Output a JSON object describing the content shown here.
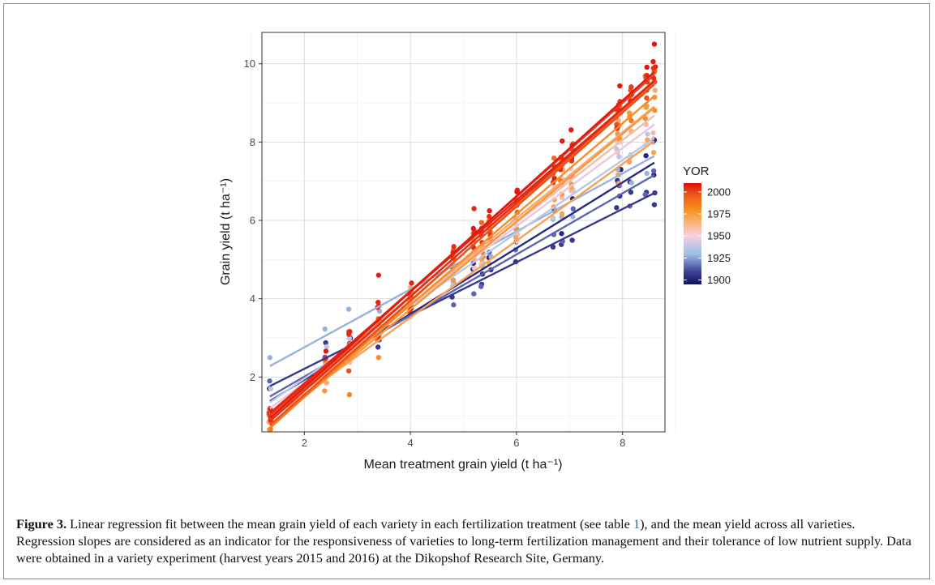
{
  "chart_data": {
    "type": "scatter",
    "xlabel": "Mean treatment grain yield (t ha⁻¹)",
    "ylabel": "Grain yield (t ha⁻¹)",
    "xlim": [
      1.2,
      8.8
    ],
    "ylim": [
      0.6,
      10.8
    ],
    "x_ticks": [
      2,
      4,
      6,
      8
    ],
    "y_ticks": [
      2,
      4,
      6,
      8,
      10
    ],
    "grid": true,
    "legend": {
      "title": "YOR",
      "type": "colorbar",
      "placement": "right",
      "ticks": [
        2000,
        1975,
        1950,
        1925,
        1900
      ],
      "range": [
        1895,
        2010
      ],
      "colors": [
        "#1a1a6e",
        "#4a4a9f",
        "#a8c8e8",
        "#f5c8d8",
        "#f9a35a",
        "#f58a1f",
        "#e8401c",
        "#e01010"
      ]
    },
    "treatment_means_x": [
      1.35,
      2.4,
      2.85,
      3.4,
      4.0,
      4.8,
      5.2,
      5.35,
      5.5,
      6.0,
      6.7,
      6.85,
      7.05,
      7.9,
      7.95,
      8.15,
      8.45,
      8.6
    ],
    "series": [
      {
        "yor": 1900,
        "intercept": 0.25,
        "slope": 0.84,
        "x_range": [
          1.35,
          8.6
        ]
      },
      {
        "yor": 1905,
        "intercept": 0.85,
        "slope": 0.68,
        "x_range": [
          1.35,
          8.6
        ]
      },
      {
        "yor": 1915,
        "intercept": 0.45,
        "slope": 0.78,
        "x_range": [
          1.35,
          8.6
        ]
      },
      {
        "yor": 1925,
        "intercept": 1.28,
        "slope": 0.74,
        "x_range": [
          1.35,
          8.6
        ]
      },
      {
        "yor": 1932,
        "intercept": 0.1,
        "slope": 0.93,
        "x_range": [
          1.35,
          8.6
        ]
      },
      {
        "yor": 1942,
        "intercept": -0.15,
        "slope": 1.0,
        "x_range": [
          1.35,
          8.6
        ]
      },
      {
        "yor": 1950,
        "intercept": -0.35,
        "slope": 1.05,
        "x_range": [
          1.35,
          8.6
        ]
      },
      {
        "yor": 1958,
        "intercept": -0.55,
        "slope": 1.1,
        "x_range": [
          1.35,
          8.6
        ]
      },
      {
        "yor": 1962,
        "intercept": -0.4,
        "slope": 0.98,
        "x_range": [
          1.35,
          8.6
        ]
      },
      {
        "yor": 1968,
        "intercept": -0.75,
        "slope": 1.12,
        "x_range": [
          1.35,
          8.6
        ]
      },
      {
        "yor": 1975,
        "intercept": -0.8,
        "slope": 1.16,
        "x_range": [
          1.35,
          8.6
        ]
      },
      {
        "yor": 1980,
        "intercept": -0.95,
        "slope": 1.22,
        "x_range": [
          1.35,
          8.6
        ]
      },
      {
        "yor": 1985,
        "intercept": -0.65,
        "slope": 1.18,
        "x_range": [
          1.35,
          8.6
        ]
      },
      {
        "yor": 1990,
        "intercept": -0.85,
        "slope": 1.2,
        "x_range": [
          1.35,
          8.6
        ]
      },
      {
        "yor": 1995,
        "intercept": -0.6,
        "slope": 1.2,
        "x_range": [
          1.35,
          8.6
        ]
      },
      {
        "yor": 2000,
        "intercept": -0.75,
        "slope": 1.2,
        "x_range": [
          1.35,
          8.6
        ]
      },
      {
        "yor": 2003,
        "intercept": -0.5,
        "slope": 1.17,
        "x_range": [
          1.35,
          8.6
        ]
      },
      {
        "yor": 2007,
        "intercept": -0.7,
        "slope": 1.22,
        "x_range": [
          1.35,
          8.6
        ]
      }
    ],
    "highlight_points": [
      {
        "x": 2.85,
        "y": 1.55,
        "yor": 1978
      },
      {
        "x": 3.4,
        "y": 4.6,
        "yor": 2005
      },
      {
        "x": 3.4,
        "y": 2.5,
        "yor": 1975
      },
      {
        "x": 8.6,
        "y": 10.5,
        "yor": 2007
      },
      {
        "x": 8.6,
        "y": 6.4,
        "yor": 1905
      },
      {
        "x": 8.6,
        "y": 8.05,
        "yor": 1900
      },
      {
        "x": 5.2,
        "y": 6.3,
        "yor": 2002
      }
    ]
  },
  "caption": {
    "label": "Figure 3.",
    "text_1": " Linear regression fit between the mean grain yield of each variety in each fertilization treatment (see table ",
    "table_ref": "1",
    "text_2": "), and the mean yield across all varieties. Regression slopes are considered as an indicator for the responsiveness of varieties to long-term fertilization management and their tolerance of low nutrient supply. Data were obtained in a variety experiment (harvest years 2015 and 2016) at the Dikopshof Research Site, Germany."
  }
}
